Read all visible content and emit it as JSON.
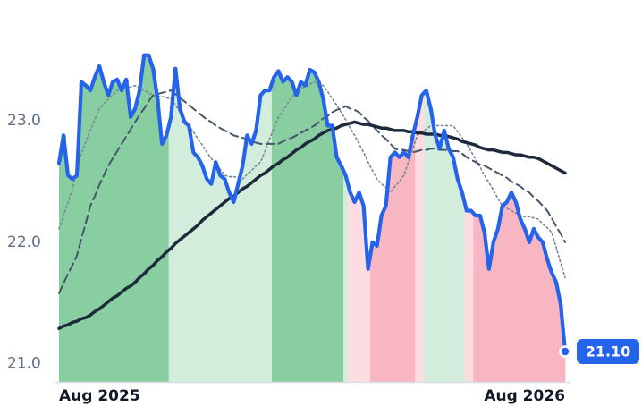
{
  "chart_data": {
    "type": "line",
    "categories": [
      "Aug 2025",
      null,
      null,
      null,
      null,
      null,
      null,
      null,
      null,
      null,
      null,
      null,
      null,
      null,
      null,
      null,
      null,
      null,
      null,
      null,
      null,
      null,
      null,
      null,
      null,
      null,
      null,
      null,
      null,
      null,
      null,
      null,
      null,
      null,
      null,
      null,
      null,
      null,
      null,
      null,
      null,
      null,
      null,
      null,
      null,
      null,
      null,
      null,
      null,
      null,
      null,
      null,
      null,
      null,
      null,
      null,
      null,
      null,
      null,
      null,
      null,
      null,
      null,
      null,
      null,
      null,
      null,
      null,
      null,
      null,
      null,
      null,
      null,
      null,
      null,
      null,
      null,
      null,
      null,
      null,
      null,
      null,
      null,
      null,
      null,
      null,
      null,
      null,
      null,
      null,
      null,
      null,
      null,
      null,
      null,
      null,
      null,
      null,
      null,
      null,
      null,
      null,
      null,
      null,
      null,
      null,
      null,
      null,
      null,
      null,
      null,
      null,
      null,
      "Aug 2026"
    ],
    "series": [
      {
        "color": "#2563eb",
        "style": "price",
        "values": [
          22.65,
          22.88,
          22.55,
          22.52,
          22.55,
          23.32,
          23.29,
          23.25,
          23.36,
          23.45,
          23.32,
          23.21,
          23.32,
          23.34,
          23.25,
          23.34,
          23.03,
          23.1,
          23.25,
          23.54,
          23.54,
          23.43,
          23.18,
          22.81,
          22.88,
          23.03,
          23.43,
          23.1,
          22.99,
          22.96,
          22.74,
          22.7,
          22.63,
          22.52,
          22.48,
          22.66,
          22.55,
          22.52,
          22.41,
          22.33,
          22.48,
          22.63,
          22.88,
          22.81,
          22.92,
          23.21,
          23.25,
          23.25,
          23.36,
          23.41,
          23.32,
          23.36,
          23.32,
          23.21,
          23.32,
          23.29,
          23.42,
          23.4,
          23.32,
          23.18,
          22.96,
          22.96,
          22.7,
          22.63,
          22.55,
          22.41,
          22.33,
          22.41,
          22.3,
          21.78,
          22.0,
          21.97,
          22.22,
          22.3,
          22.7,
          22.74,
          22.7,
          22.74,
          22.7,
          22.88,
          23.03,
          23.21,
          23.25,
          23.1,
          22.88,
          22.77,
          22.92,
          22.77,
          22.7,
          22.52,
          22.41,
          22.26,
          22.26,
          22.22,
          22.22,
          22.08,
          21.78,
          22.0,
          22.11,
          22.3,
          22.33,
          22.41,
          22.33,
          22.19,
          22.11,
          22.0,
          22.11,
          22.04,
          22.0,
          21.86,
          21.75,
          21.67,
          21.49,
          21.1
        ],
        "area_colors": [
          "#88cea1",
          "#88cea1",
          "#88cea1",
          "#88cea1",
          "#88cea1",
          "#88cea1",
          "#88cea1",
          "#88cea1",
          "#88cea1",
          "#88cea1",
          "#88cea1",
          "#88cea1",
          "#88cea1",
          "#88cea1",
          "#88cea1",
          "#88cea1",
          "#88cea1",
          "#88cea1",
          "#88cea1",
          "#88cea1",
          "#88cea1",
          "#88cea1",
          "#88cea1",
          "#88cea1",
          "#88cea1",
          "#d3eddc",
          "#d3eddc",
          "#d3eddc",
          "#d3eddc",
          "#d3eddc",
          "#d3eddc",
          "#d3eddc",
          "#d3eddc",
          "#d3eddc",
          "#d3eddc",
          "#d3eddc",
          "#d3eddc",
          "#d3eddc",
          "#d3eddc",
          "#d3eddc",
          "#d3eddc",
          "#d3eddc",
          "#d3eddc",
          "#d3eddc",
          "#d3eddc",
          "#d3eddc",
          "#d3eddc",
          "#d3eddc",
          "#88cea1",
          "#88cea1",
          "#88cea1",
          "#88cea1",
          "#88cea1",
          "#88cea1",
          "#88cea1",
          "#88cea1",
          "#88cea1",
          "#88cea1",
          "#88cea1",
          "#88cea1",
          "#88cea1",
          "#88cea1",
          "#88cea1",
          "#88cea1",
          "#d3eddc",
          "#fddde2",
          "#fddde2",
          "#fddde2",
          "#fddde2",
          "#fddde2",
          "#f7b6c1",
          "#f7b6c1",
          "#f7b6c1",
          "#f7b6c1",
          "#f7b6c1",
          "#f7b6c1",
          "#f7b6c1",
          "#f7b6c1",
          "#f7b6c1",
          "#f7b6c1",
          "#fddde2",
          "#fddde2",
          "#d3eddc",
          "#d3eddc",
          "#d3eddc",
          "#d3eddc",
          "#d3eddc",
          "#d3eddc",
          "#d3eddc",
          "#d3eddc",
          "#d3eddc",
          "#fddde2",
          "#fddde2",
          "#f7b6c1",
          "#f7b6c1",
          "#f7b6c1",
          "#f7b6c1",
          "#f7b6c1",
          "#f7b6c1",
          "#f7b6c1",
          "#f7b6c1",
          "#f7b6c1",
          "#f7b6c1",
          "#f7b6c1",
          "#f7b6c1",
          "#f7b6c1",
          "#f7b6c1",
          "#f7b6c1",
          "#f7b6c1",
          "#f7b6c1",
          "#f7b6c1",
          "#f7b6c1",
          "#f7b6c1",
          "#f7b6c1"
        ]
      },
      {
        "color": "#1e293b",
        "style": "solid",
        "values": [
          21.29,
          21.31,
          21.32,
          21.34,
          21.35,
          21.37,
          21.38,
          21.4,
          21.43,
          21.45,
          21.48,
          21.51,
          21.54,
          21.56,
          21.59,
          21.62,
          21.64,
          21.67,
          21.71,
          21.74,
          21.78,
          21.81,
          21.85,
          21.88,
          21.92,
          21.95,
          21.99,
          22.02,
          22.05,
          22.08,
          22.11,
          22.14,
          22.18,
          22.21,
          22.24,
          22.27,
          22.3,
          22.33,
          22.36,
          22.38,
          22.41,
          22.44,
          22.46,
          22.49,
          22.52,
          22.55,
          22.57,
          22.6,
          22.63,
          22.65,
          22.68,
          22.7,
          22.73,
          22.76,
          22.78,
          22.81,
          22.83,
          22.85,
          22.88,
          22.9,
          22.92,
          22.93,
          22.94,
          22.96,
          22.97,
          22.98,
          22.99,
          22.98,
          22.97,
          22.97,
          22.96,
          22.95,
          22.94,
          22.94,
          22.93,
          22.92,
          22.92,
          22.92,
          22.91,
          22.91,
          22.9,
          22.9,
          22.89,
          22.89,
          22.89,
          22.88,
          22.88,
          22.87,
          22.86,
          22.85,
          22.83,
          22.82,
          22.81,
          22.8,
          22.78,
          22.77,
          22.76,
          22.76,
          22.75,
          22.74,
          22.74,
          22.73,
          22.72,
          22.72,
          22.71,
          22.7,
          22.7,
          22.69,
          22.67,
          22.65,
          22.63,
          22.61,
          22.59,
          22.57
        ]
      },
      {
        "color": "#475569",
        "style": "dashed",
        "values": [
          21.58,
          21.66,
          21.74,
          21.81,
          21.89,
          22.03,
          22.16,
          22.3,
          22.38,
          22.47,
          22.55,
          22.63,
          22.69,
          22.75,
          22.81,
          22.87,
          22.93,
          22.99,
          23.05,
          23.1,
          23.16,
          23.21,
          23.22,
          23.23,
          23.24,
          23.25,
          23.22,
          23.19,
          23.16,
          23.13,
          23.1,
          23.07,
          23.04,
          23.01,
          22.99,
          22.96,
          22.94,
          22.92,
          22.9,
          22.88,
          22.87,
          22.86,
          22.85,
          22.83,
          22.82,
          22.81,
          22.81,
          22.81,
          22.81,
          22.81,
          22.83,
          22.85,
          22.86,
          22.88,
          22.9,
          22.92,
          22.94,
          22.96,
          22.99,
          23.02,
          23.04,
          23.07,
          23.09,
          23.1,
          23.12,
          23.1,
          23.09,
          23.07,
          23.03,
          23.0,
          22.96,
          22.92,
          22.88,
          22.85,
          22.81,
          22.77,
          22.76,
          22.76,
          22.75,
          22.74,
          22.75,
          22.76,
          22.76,
          22.77,
          22.77,
          22.76,
          22.76,
          22.76,
          22.75,
          22.75,
          22.73,
          22.7,
          22.68,
          22.66,
          22.64,
          22.63,
          22.61,
          22.59,
          22.57,
          22.55,
          22.53,
          22.5,
          22.48,
          22.46,
          22.43,
          22.41,
          22.37,
          22.34,
          22.3,
          22.26,
          22.2,
          22.13,
          22.07,
          22.0
        ]
      },
      {
        "color": "#7b8797",
        "style": "dotted",
        "values": [
          22.11,
          22.22,
          22.33,
          22.44,
          22.59,
          22.74,
          22.83,
          22.92,
          23.01,
          23.1,
          23.14,
          23.18,
          23.21,
          23.25,
          23.26,
          23.27,
          23.28,
          23.29,
          23.27,
          23.25,
          23.23,
          23.21,
          23.2,
          23.2,
          23.19,
          23.18,
          23.13,
          23.07,
          23.02,
          22.96,
          22.91,
          22.85,
          22.8,
          22.74,
          22.69,
          22.65,
          22.6,
          22.55,
          22.54,
          22.54,
          22.53,
          22.52,
          22.56,
          22.59,
          22.63,
          22.66,
          22.75,
          22.85,
          22.94,
          23.03,
          23.08,
          23.14,
          23.19,
          23.25,
          23.27,
          23.28,
          23.3,
          23.32,
          23.31,
          23.29,
          23.24,
          23.18,
          23.13,
          23.07,
          23.01,
          22.94,
          22.88,
          22.81,
          22.74,
          22.66,
          22.59,
          22.52,
          22.48,
          22.45,
          22.41,
          22.46,
          22.5,
          22.55,
          22.66,
          22.77,
          22.88,
          22.91,
          22.93,
          22.96,
          22.96,
          22.96,
          22.96,
          22.96,
          22.96,
          22.91,
          22.86,
          22.81,
          22.75,
          22.68,
          22.62,
          22.55,
          22.49,
          22.43,
          22.36,
          22.3,
          22.28,
          22.26,
          22.24,
          22.22,
          22.21,
          22.21,
          22.2,
          22.19,
          22.15,
          22.12,
          22.08,
          21.96,
          21.83,
          21.71
        ]
      }
    ],
    "last_label": "21.10",
    "ylim": [
      20.85,
      23.7
    ],
    "yticks": [
      {
        "value": 21,
        "label": "21.0"
      },
      {
        "value": 22,
        "label": "22.0"
      },
      {
        "value": 23,
        "label": "23.0"
      }
    ],
    "grid": false
  }
}
